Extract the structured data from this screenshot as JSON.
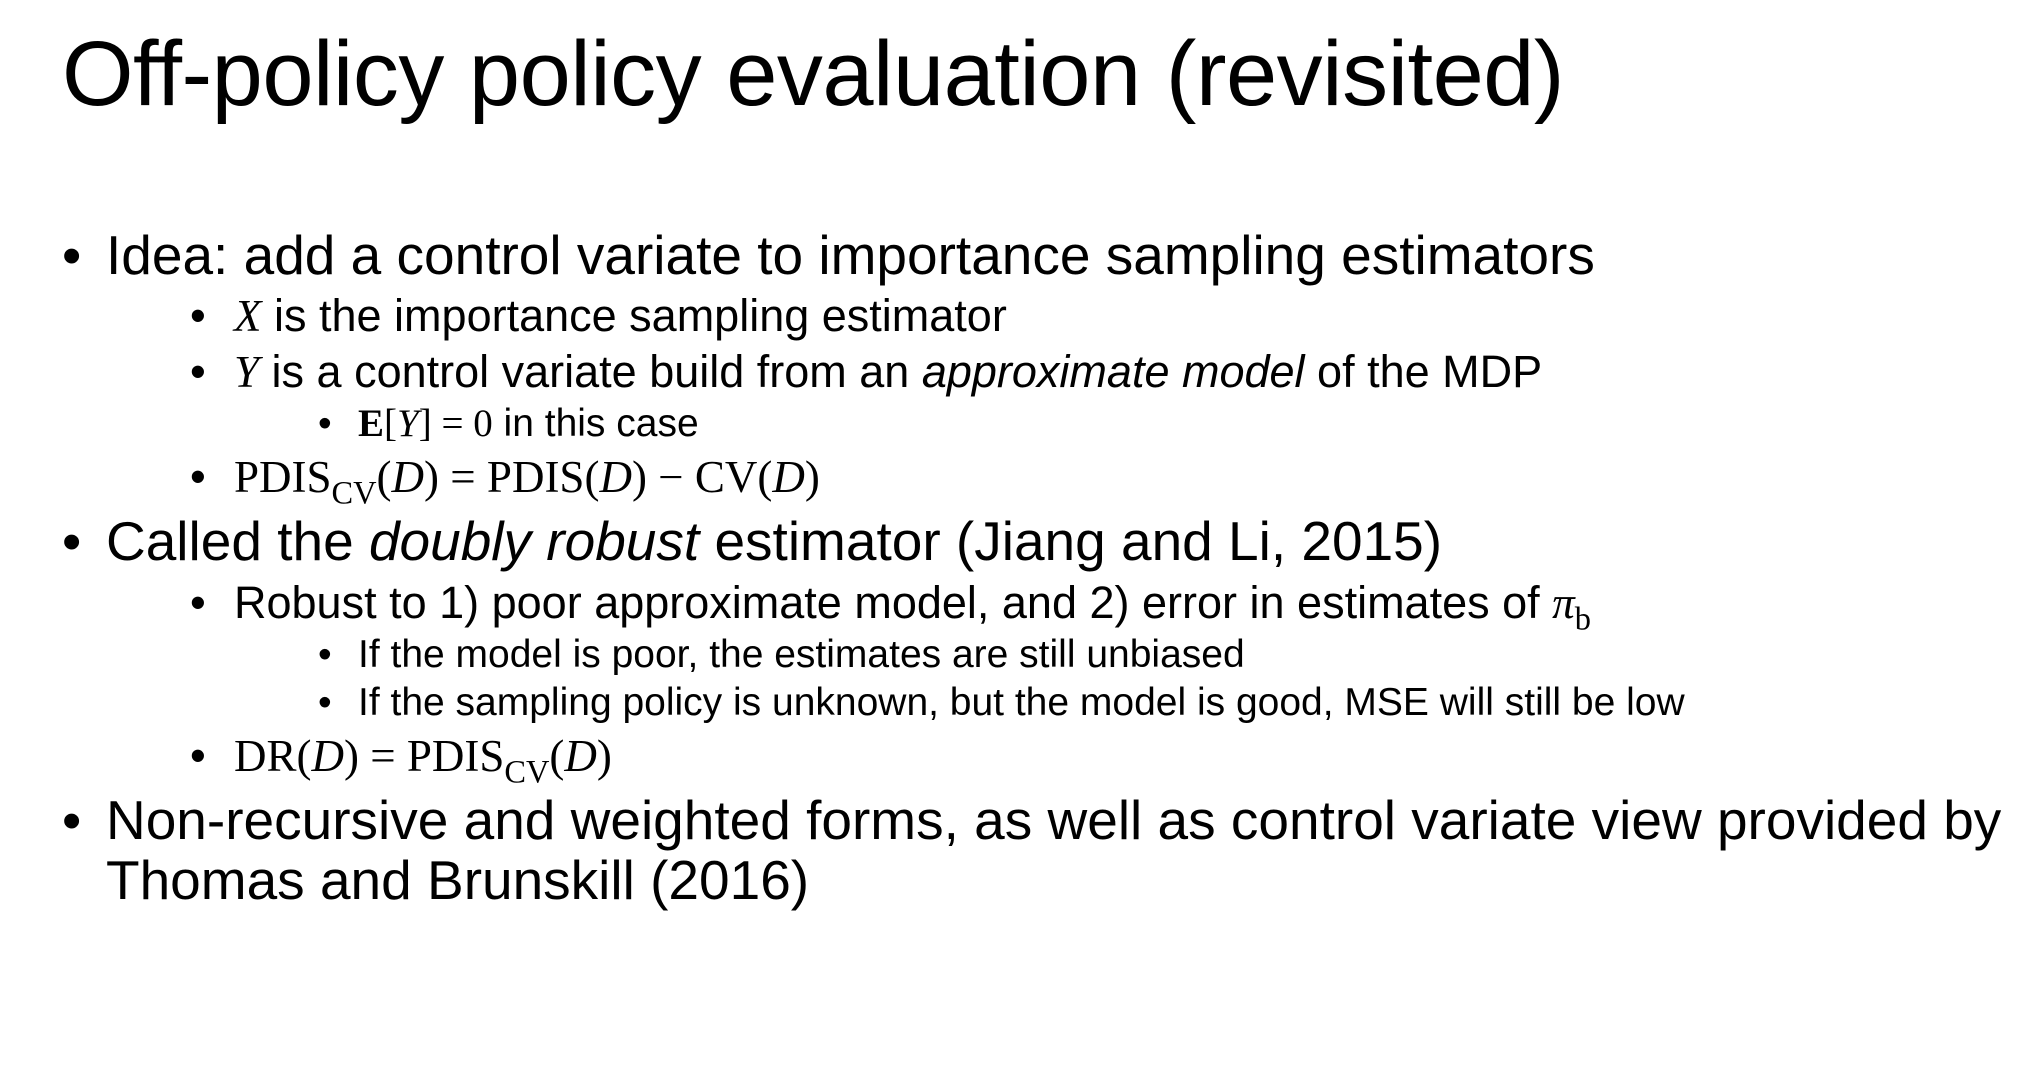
{
  "title": "Off-policy policy evaluation (revisited)",
  "bullet_glyph": "•",
  "items": {
    "idea": {
      "text": "Idea: add a control variate to importance sampling estimators",
      "sub": {
        "x": {
          "var": "X",
          "rest": " is the importance sampling estimator"
        },
        "y": {
          "var": "Y",
          "before": " is a control variate build from an ",
          "em": "approximate model",
          "after": " of the MDP",
          "sub": {
            "math_e": "E",
            "math_open": "[",
            "math_var": "Y",
            "math_close": "] = 0",
            "rest": " in this case"
          }
        },
        "pdis": {
          "lhs": "PDIS",
          "lhs_sub": "CV",
          "lhs_open": "(",
          "lhs_var": "D",
          "lhs_close": ")",
          "eq": " = PDIS(",
          "rhs_var": "D",
          "rhs_mid": ") − CV(",
          "rhs_var2": "D",
          "rhs_close": ")"
        }
      }
    },
    "called": {
      "before": "Called the ",
      "em": "doubly robust",
      "after": " estimator (Jiang and Li, 2015)",
      "sub": {
        "robust": {
          "text": "Robust to 1) poor approximate model, and 2) error in estimates of ",
          "pi": "π",
          "pi_sub": "b",
          "sub": [
            "If the model is poor, the estimates are still unbiased",
            "If the sampling policy is unknown, but the model is good, MSE will still be low"
          ]
        },
        "dr": {
          "lhs": "DR(",
          "lhs_var": "D",
          "eq": ") = PDIS",
          "sub": "CV",
          "open": "(",
          "var": "D",
          "close": ")"
        }
      }
    },
    "nonrec": {
      "text": "Non-recursive and weighted forms, as well as control variate view provided by Thomas and Brunskill (2016)"
    }
  }
}
